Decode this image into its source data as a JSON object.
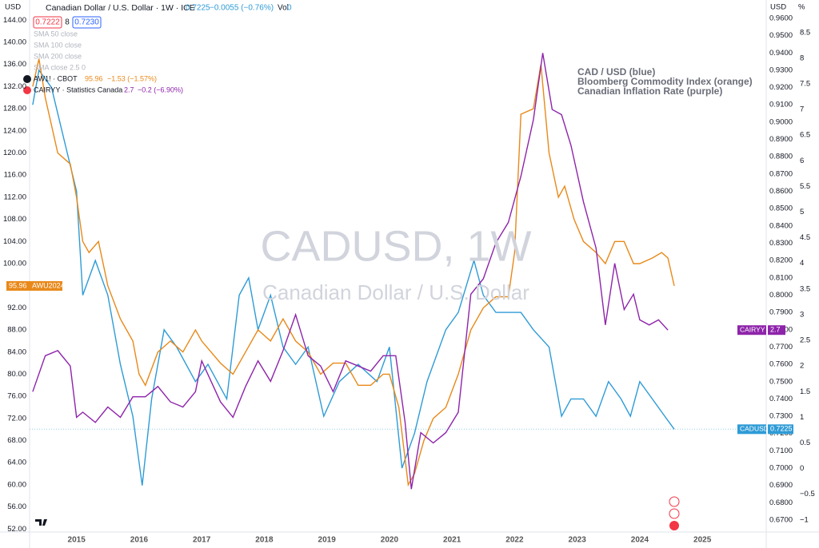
{
  "ui": {
    "axis_left_unit": "USD",
    "axis_right_unit": "USD",
    "axis_pct_unit": "%",
    "symbol_title": "Canadian Dollar / U.S. Dollar · 1W · ICE",
    "last": "0.7225",
    "change": "−0.0055 (−0.76%)",
    "vol": "Vol",
    "vol_value": "0",
    "bid": "0.7222",
    "spread": "8",
    "ask": "0.7230",
    "studies": [
      "SMA 50 close",
      "SMA 100 close",
      "SMA 200 close",
      "SMA close 2.5 0"
    ],
    "comparisons": [
      {
        "symbol": "AW1! · CBOT",
        "last": "95.96",
        "change": "−1.53 (−1.57%)"
      },
      {
        "symbol": "CAIRYY · Statistics Canada",
        "last": "2.7",
        "change": "−0.2 (−6.90%)"
      }
    ],
    "watermark_title": "CADUSD, 1W",
    "watermark_subtitle": "Canadian Dollar / U.S. Dollar"
  },
  "chart_data": {
    "type": "line",
    "annotations": [
      "CAD / USD (blue)",
      "Bloomberg Commodity Index (orange)",
      "Canadian Inflation Rate (purple)"
    ],
    "xlim": [
      2014.25,
      2026.02
    ],
    "xticks": [
      2015,
      2016,
      2017,
      2018,
      2019,
      2020,
      2021,
      2022,
      2023,
      2024,
      2025
    ],
    "ylim": [
      50.6,
      146.5
    ],
    "yticks": [
      {
        "value": 52,
        "label": "52.00"
      },
      {
        "value": 56,
        "label": "56.00"
      },
      {
        "value": 60,
        "label": "60.00"
      },
      {
        "value": 64,
        "label": "64.00"
      },
      {
        "value": 68,
        "label": "68.00"
      },
      {
        "value": 72,
        "label": "72.00"
      },
      {
        "value": 76,
        "label": "76.00"
      },
      {
        "value": 80,
        "label": "80.00"
      },
      {
        "value": 84,
        "label": "84.00"
      },
      {
        "value": 88,
        "label": "88.00"
      },
      {
        "value": 92,
        "label": "92.00"
      },
      {
        "value": 96,
        "label": "96.00"
      },
      {
        "value": 100,
        "label": "100.00"
      },
      {
        "value": 104,
        "label": "104.00"
      },
      {
        "value": 108,
        "label": "108.00"
      },
      {
        "value": 112,
        "label": "112.00"
      },
      {
        "value": 116,
        "label": "116.00"
      },
      {
        "value": 120,
        "label": "120.00"
      },
      {
        "value": 124,
        "label": "124.00"
      },
      {
        "value": 128,
        "label": "128.00"
      },
      {
        "value": 132,
        "label": "132.00"
      },
      {
        "value": 136,
        "label": "136.00"
      },
      {
        "value": 140,
        "label": "140.00"
      },
      {
        "value": 144,
        "label": "144.00"
      }
    ],
    "y2lim": [
      0.6603,
      0.9669
    ],
    "y2ticks": [
      {
        "value": 0.67,
        "label": "0.6700"
      },
      {
        "value": 0.68,
        "label": "0.6800"
      },
      {
        "value": 0.69,
        "label": "0.6900"
      },
      {
        "value": 0.7,
        "label": "0.7000"
      },
      {
        "value": 0.71,
        "label": "0.7100"
      },
      {
        "value": 0.72,
        "label": "0.7200"
      },
      {
        "value": 0.73,
        "label": "0.7300"
      },
      {
        "value": 0.74,
        "label": "0.7400"
      },
      {
        "value": 0.75,
        "label": "0.7500"
      },
      {
        "value": 0.76,
        "label": "0.7600"
      },
      {
        "value": 0.77,
        "label": "0.7700"
      },
      {
        "value": 0.78,
        "label": "0.7800"
      },
      {
        "value": 0.79,
        "label": "0.7900"
      },
      {
        "value": 0.8,
        "label": "0.8000"
      },
      {
        "value": 0.81,
        "label": "0.8100"
      },
      {
        "value": 0.82,
        "label": "0.8200"
      },
      {
        "value": 0.83,
        "label": "0.8300"
      },
      {
        "value": 0.84,
        "label": "0.8400"
      },
      {
        "value": 0.85,
        "label": "0.8500"
      },
      {
        "value": 0.86,
        "label": "0.8600"
      },
      {
        "value": 0.87,
        "label": "0.8700"
      },
      {
        "value": 0.88,
        "label": "0.8800"
      },
      {
        "value": 0.89,
        "label": "0.8900"
      },
      {
        "value": 0.9,
        "label": "0.9000"
      },
      {
        "value": 0.91,
        "label": "0.9100"
      },
      {
        "value": 0.92,
        "label": "0.9200"
      },
      {
        "value": 0.93,
        "label": "0.9300"
      },
      {
        "value": 0.94,
        "label": "0.9400"
      },
      {
        "value": 0.95,
        "label": "0.9500"
      },
      {
        "value": 0.96,
        "label": "0.9600"
      }
    ],
    "y3lim": [
      -1.33,
      9.01
    ],
    "y3ticks": [
      {
        "value": -1,
        "label": "−1"
      },
      {
        "value": -0.5,
        "label": "−0.5"
      },
      0,
      0.5,
      1,
      1.5,
      2,
      2.5,
      3,
      3.5,
      4,
      4.5,
      5,
      5.5,
      6,
      6.5,
      7,
      7.5,
      8,
      8.5
    ],
    "grid": false,
    "series": [
      {
        "name": "CADUSD",
        "color": "#2e9bd6",
        "axis": "y2",
        "x": [
          2014.3,
          2014.4,
          2014.6,
          2014.8,
          2015.0,
          2015.1,
          2015.3,
          2015.5,
          2015.7,
          2015.9,
          2016.05,
          2016.2,
          2016.4,
          2016.6,
          2016.9,
          2017.1,
          2017.4,
          2017.6,
          2017.75,
          2017.9,
          2018.1,
          2018.3,
          2018.5,
          2018.7,
          2018.95,
          2019.2,
          2019.5,
          2019.8,
          2020.0,
          2020.2,
          2020.4,
          2020.6,
          2020.9,
          2021.1,
          2021.35,
          2021.5,
          2021.7,
          2021.9,
          2022.1,
          2022.3,
          2022.55,
          2022.75,
          2022.9,
          2023.1,
          2023.3,
          2023.5,
          2023.7,
          2023.85,
          2024.0,
          2024.2,
          2024.4,
          2024.55
        ],
        "values": [
          0.91,
          0.93,
          0.92,
          0.89,
          0.86,
          0.8,
          0.82,
          0.8,
          0.76,
          0.73,
          0.69,
          0.74,
          0.78,
          0.77,
          0.75,
          0.76,
          0.74,
          0.8,
          0.81,
          0.78,
          0.8,
          0.77,
          0.76,
          0.77,
          0.73,
          0.75,
          0.76,
          0.75,
          0.77,
          0.7,
          0.72,
          0.75,
          0.78,
          0.79,
          0.82,
          0.8,
          0.79,
          0.79,
          0.79,
          0.78,
          0.77,
          0.73,
          0.74,
          0.74,
          0.73,
          0.75,
          0.74,
          0.73,
          0.75,
          0.74,
          0.73,
          0.7225
        ]
      },
      {
        "name": "AWU2024",
        "color": "#e8891a",
        "axis": "y",
        "x": [
          2014.3,
          2014.4,
          2014.5,
          2014.7,
          2014.9,
          2015.0,
          2015.1,
          2015.2,
          2015.35,
          2015.5,
          2015.7,
          2015.9,
          2016.0,
          2016.1,
          2016.3,
          2016.5,
          2016.7,
          2016.9,
          2017.0,
          2017.3,
          2017.5,
          2017.7,
          2017.9,
          2018.1,
          2018.3,
          2018.5,
          2018.7,
          2018.9,
          2019.1,
          2019.3,
          2019.5,
          2019.7,
          2019.9,
          2020.0,
          2020.15,
          2020.3,
          2020.4,
          2020.55,
          2020.7,
          2020.9,
          2021.1,
          2021.3,
          2021.5,
          2021.7,
          2021.9,
          2022.0,
          2022.1,
          2022.3,
          2022.42,
          2022.55,
          2022.7,
          2022.8,
          2022.95,
          2023.1,
          2023.3,
          2023.45,
          2023.6,
          2023.75,
          2023.9,
          2024.0,
          2024.2,
          2024.35,
          2024.45,
          2024.55
        ],
        "values": [
          132,
          137,
          130,
          120,
          118,
          112,
          104,
          102,
          104,
          96,
          90,
          86,
          80,
          78,
          84,
          86,
          84,
          88,
          86,
          82,
          80,
          84,
          88,
          86,
          90,
          86,
          84,
          80,
          82,
          82,
          78,
          78,
          80,
          80,
          74,
          60,
          62,
          68,
          72,
          74,
          80,
          88,
          92,
          94,
          94,
          102,
          127,
          128,
          136,
          120,
          112,
          114,
          108,
          104,
          102,
          100,
          104,
          104,
          100,
          100,
          101,
          102,
          101,
          95.96
        ]
      },
      {
        "name": "CAIRYY",
        "color": "#8e24aa",
        "axis": "y3",
        "x": [
          2014.3,
          2014.5,
          2014.7,
          2014.9,
          2015.0,
          2015.1,
          2015.3,
          2015.5,
          2015.7,
          2015.9,
          2016.1,
          2016.3,
          2016.5,
          2016.7,
          2016.9,
          2017.0,
          2017.3,
          2017.5,
          2017.7,
          2017.9,
          2018.1,
          2018.3,
          2018.5,
          2018.7,
          2018.9,
          2019.1,
          2019.3,
          2019.5,
          2019.7,
          2019.9,
          2020.1,
          2020.25,
          2020.35,
          2020.5,
          2020.7,
          2020.9,
          2021.1,
          2021.3,
          2021.5,
          2021.7,
          2021.9,
          2022.1,
          2022.3,
          2022.45,
          2022.6,
          2022.75,
          2022.9,
          2023.1,
          2023.3,
          2023.45,
          2023.6,
          2023.75,
          2023.9,
          2024.0,
          2024.15,
          2024.3,
          2024.45
        ],
        "values": [
          1.5,
          2.2,
          2.3,
          2.0,
          1.0,
          1.1,
          0.9,
          1.2,
          1.0,
          1.4,
          1.4,
          1.6,
          1.3,
          1.2,
          1.5,
          2.1,
          1.3,
          1.0,
          1.6,
          2.1,
          1.7,
          2.3,
          3.0,
          2.2,
          2.0,
          1.5,
          2.1,
          2.0,
          1.9,
          2.2,
          2.2,
          0.9,
          -0.4,
          0.7,
          0.5,
          0.7,
          1.1,
          3.4,
          3.7,
          4.4,
          4.8,
          5.7,
          6.8,
          8.1,
          7.0,
          6.9,
          6.3,
          5.2,
          4.3,
          2.8,
          4.0,
          3.1,
          3.4,
          2.9,
          2.8,
          2.9,
          2.7
        ]
      }
    ]
  }
}
